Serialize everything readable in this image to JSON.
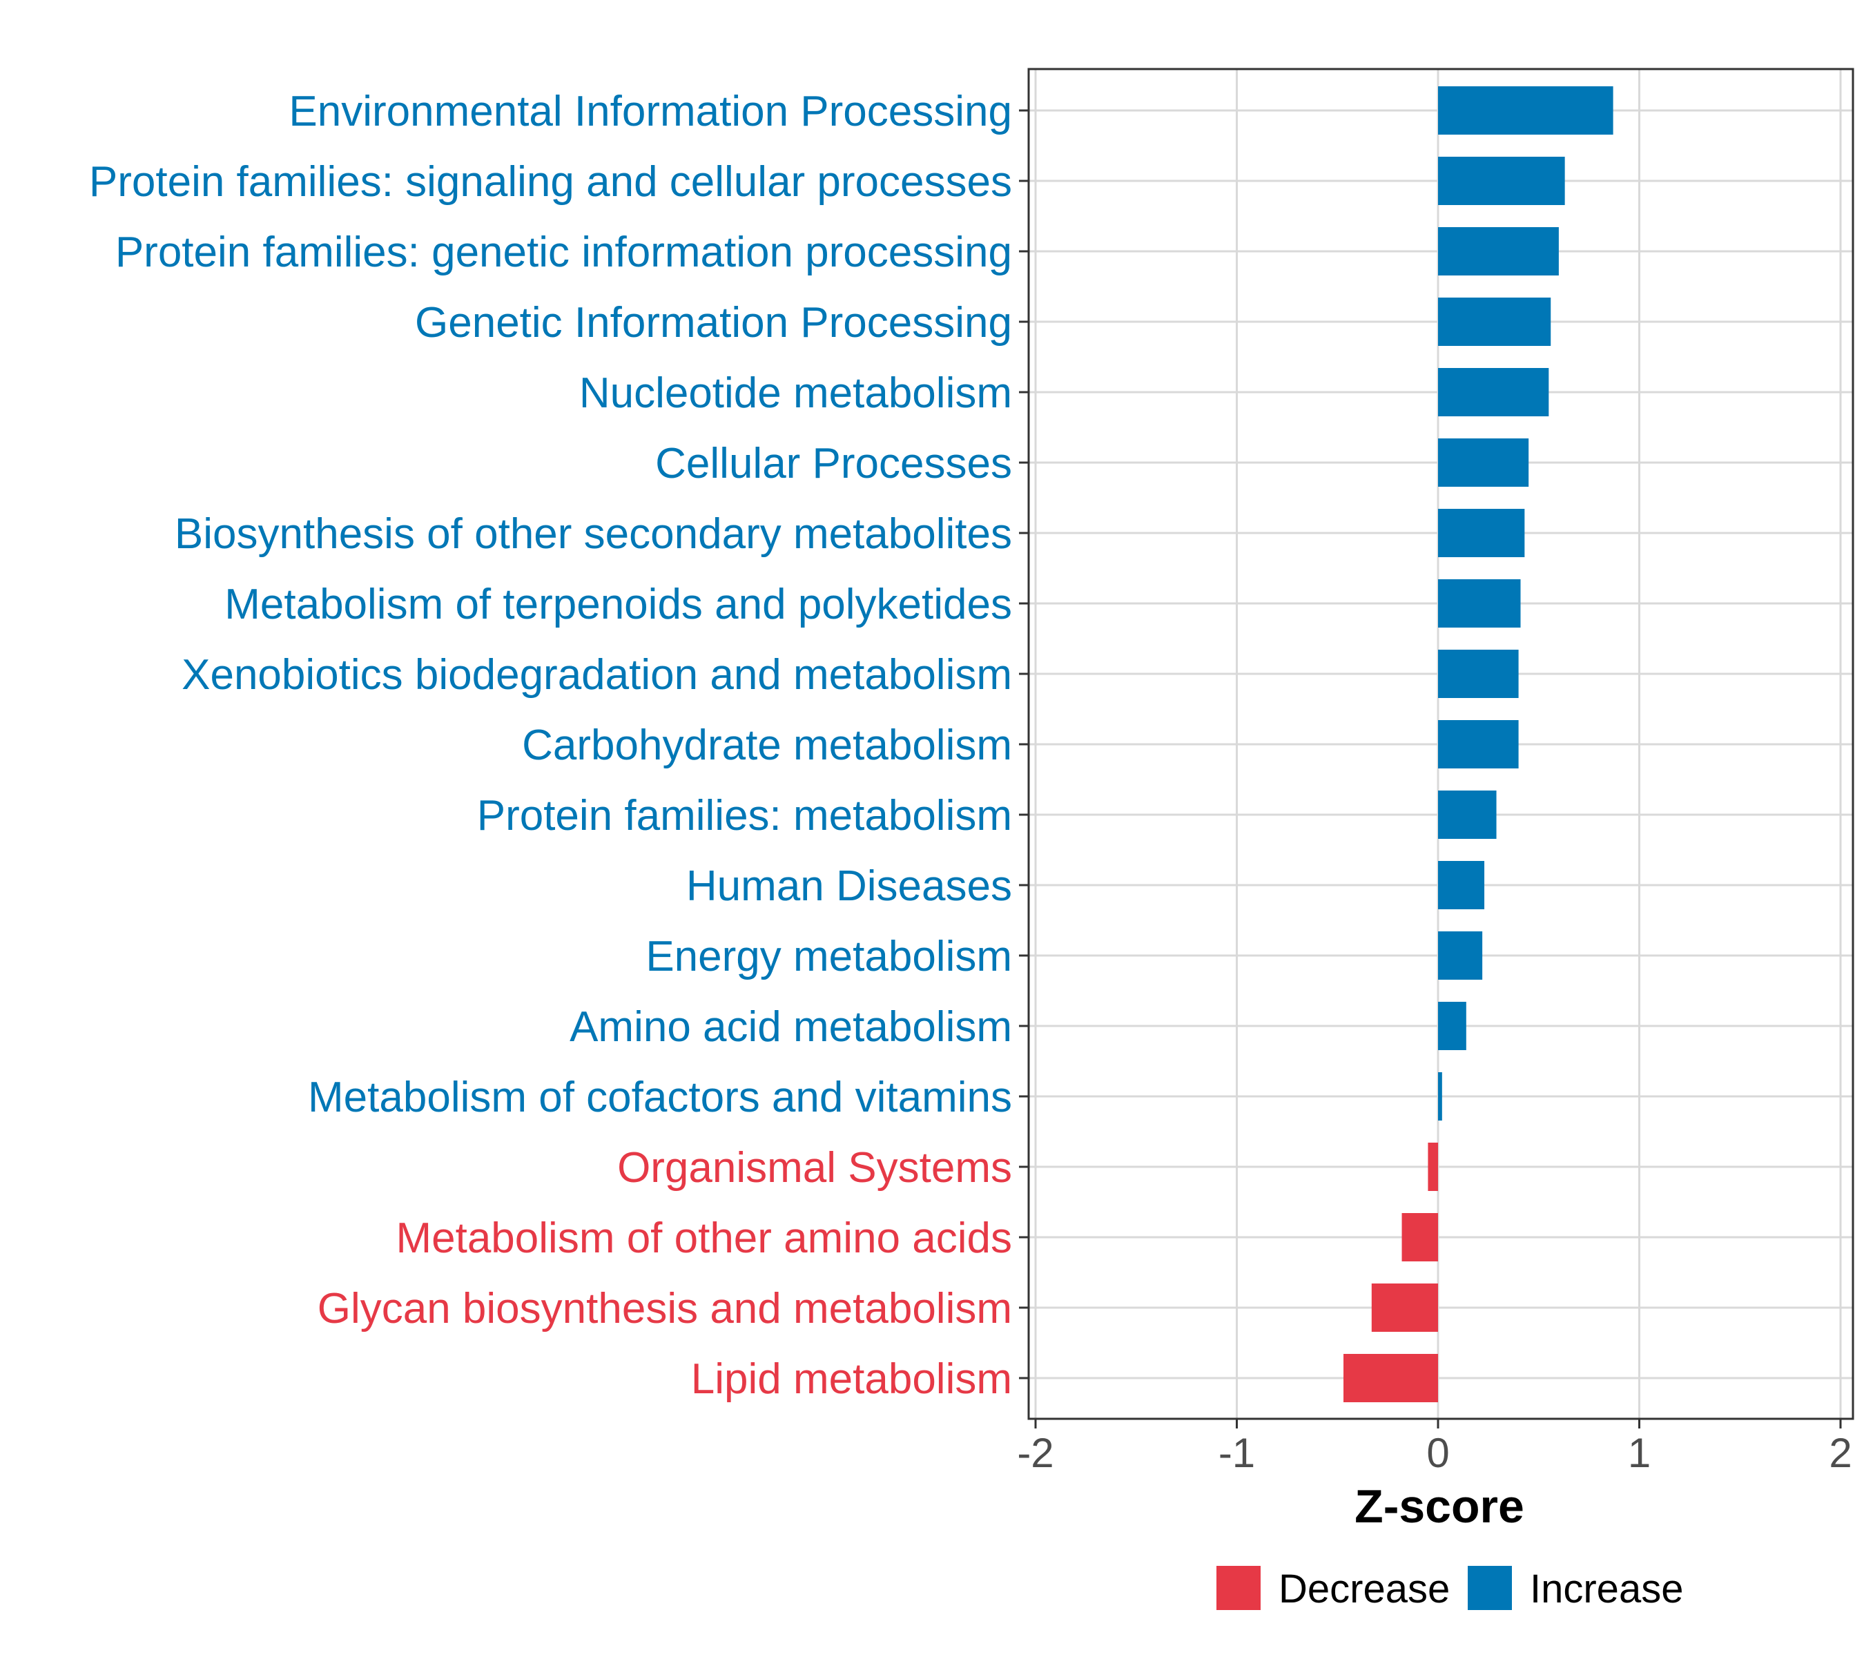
{
  "chart_data": {
    "type": "bar",
    "orientation": "horizontal",
    "categories": [
      "Environmental Information Processing",
      "Protein families: signaling and cellular processes",
      "Protein families: genetic information processing",
      "Genetic Information Processing",
      "Nucleotide metabolism",
      "Cellular Processes",
      "Biosynthesis of other secondary metabolites",
      "Metabolism of terpenoids and polyketides",
      "Xenobiotics biodegradation and metabolism",
      "Carbohydrate metabolism",
      "Protein families: metabolism",
      "Human Diseases",
      "Energy metabolism",
      "Amino acid metabolism",
      "Metabolism of cofactors and vitamins",
      "Organismal Systems",
      "Metabolism of other amino acids",
      "Glycan biosynthesis and metabolism",
      "Lipid metabolism"
    ],
    "values": [
      0.87,
      0.63,
      0.6,
      0.56,
      0.55,
      0.45,
      0.43,
      0.41,
      0.4,
      0.4,
      0.29,
      0.23,
      0.22,
      0.14,
      0.02,
      -0.05,
      -0.18,
      -0.33,
      -0.47
    ],
    "groups": [
      "Increase",
      "Increase",
      "Increase",
      "Increase",
      "Increase",
      "Increase",
      "Increase",
      "Increase",
      "Increase",
      "Increase",
      "Increase",
      "Increase",
      "Increase",
      "Increase",
      "Increase",
      "Decrease",
      "Decrease",
      "Decrease",
      "Decrease"
    ],
    "title": "",
    "xlabel": "Z-score",
    "ylabel": "",
    "xlim": [
      -2,
      2
    ],
    "x_ticks": [
      -2,
      -1,
      0,
      1,
      2
    ],
    "x_tick_labels": [
      "-2",
      "-1",
      "0",
      "1",
      "2"
    ],
    "grid": true,
    "legend": {
      "position": "bottom",
      "items": [
        {
          "label": "Decrease",
          "color": "#e63946"
        },
        {
          "label": "Increase",
          "color": "#0077b6"
        }
      ]
    },
    "colors": {
      "Decrease": "#e63946",
      "Increase": "#0077b6"
    }
  }
}
